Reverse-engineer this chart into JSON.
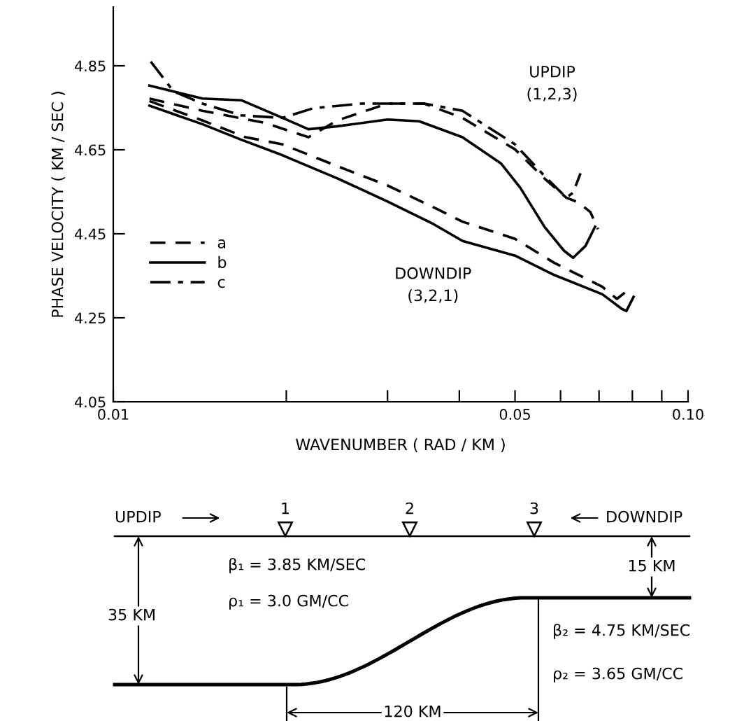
{
  "chart_data": [
    {
      "type": "line",
      "xlabel": "WAVENUMBER ( RAD / KM )",
      "ylabel": "PHASE VELOCITY ( KM / SEC )",
      "log": "x",
      "xlim": [
        0.01,
        0.1
      ],
      "ylim": [
        4.05,
        4.99
      ],
      "xticks": [
        0.01,
        {
          "value": 0.02,
          "label": null
        },
        {
          "value": 0.03,
          "label": null
        },
        {
          "value": 0.04,
          "label": null
        },
        0.05,
        {
          "value": 0.06,
          "label": null
        },
        {
          "value": 0.07,
          "label": null
        },
        {
          "value": 0.08,
          "label": null
        },
        {
          "value": 0.09,
          "label": null
        },
        {
          "value": 0.1,
          "label": "0.10"
        }
      ],
      "yticks": [
        4.05,
        4.25,
        4.45,
        4.65,
        4.85
      ],
      "grid": false,
      "legend": "left",
      "marker": "none",
      "series": [
        {
          "name": "a",
          "color": "#000000",
          "line_style": "dashed",
          "x": [
            0.01156,
            0.01429,
            0.01837,
            0.02186,
            0.02454,
            0.03,
            0.03474,
            0.0405,
            0.05,
            0.05624,
            0.0614,
            0.0644,
            0.0676,
            0.0697
          ],
          "values": [
            4.772,
            4.743,
            4.714,
            4.68,
            4.72,
            4.76,
            4.76,
            4.726,
            4.651,
            4.582,
            4.536,
            4.525,
            4.502,
            4.461
          ]
        },
        {
          "name": "b",
          "color": "#000000",
          "line_style": "solid",
          "x": [
            0.01156,
            0.01429,
            0.0167,
            0.0197,
            0.02186,
            0.02454,
            0.03,
            0.03406,
            0.0405,
            0.04731,
            0.0511,
            0.05624,
            0.06081,
            0.0631,
            0.0663,
            0.0689
          ],
          "values": [
            4.803,
            4.772,
            4.768,
            4.726,
            4.699,
            4.706,
            4.722,
            4.718,
            4.68,
            4.617,
            4.559,
            4.467,
            4.41,
            4.393,
            4.421,
            4.467
          ]
        },
        {
          "name": "c",
          "color": "#000000",
          "line_style": "dashdot",
          "x": [
            0.01162,
            0.01273,
            0.01429,
            0.0167,
            0.0197,
            0.02228,
            0.02703,
            0.03474,
            0.0405,
            0.05,
            0.05624,
            0.0614,
            0.0631,
            0.065
          ],
          "values": [
            4.86,
            4.789,
            4.76,
            4.732,
            4.726,
            4.749,
            4.76,
            4.76,
            4.743,
            4.663,
            4.588,
            4.536,
            4.548,
            4.594
          ]
        },
        {
          "color": "#000000",
          "line_style": "dashed",
          "x": [
            0.01156,
            0.01429,
            0.017,
            0.0197,
            0.02454,
            0.03,
            0.03608,
            0.0405,
            0.05,
            0.05848,
            0.07093,
            0.0752,
            0.0789
          ],
          "values": [
            4.766,
            4.72,
            4.68,
            4.663,
            4.611,
            4.565,
            4.513,
            4.479,
            4.438,
            4.381,
            4.324,
            4.295,
            4.318
          ]
        },
        {
          "color": "#000000",
          "line_style": "solid",
          "x": [
            0.01156,
            0.01429,
            0.0167,
            0.0197,
            0.02454,
            0.03,
            0.03608,
            0.04053,
            0.05,
            0.05848,
            0.07093,
            0.07656,
            0.0781,
            0.0804
          ],
          "values": [
            4.755,
            4.711,
            4.674,
            4.637,
            4.582,
            4.527,
            4.473,
            4.433,
            4.398,
            4.352,
            4.306,
            4.272,
            4.266,
            4.3
          ]
        }
      ],
      "annotations": [
        "UPDIP\n(1,2,3)",
        "DOWNDIP\n(3,2,1)"
      ]
    },
    {
      "type": "other",
      "annotations": [
        "UPDIP",
        "DOWNDIP",
        "1",
        "2",
        "3",
        "β₁ = 3.85 KM/SEC",
        "ρ₁ = 3.0 GM/CC",
        "35 KM",
        "15 KM",
        "β₂ = 4.75 KM/SEC",
        "ρ₂ = 3.65 GM/CC",
        "120 KM"
      ]
    }
  ]
}
